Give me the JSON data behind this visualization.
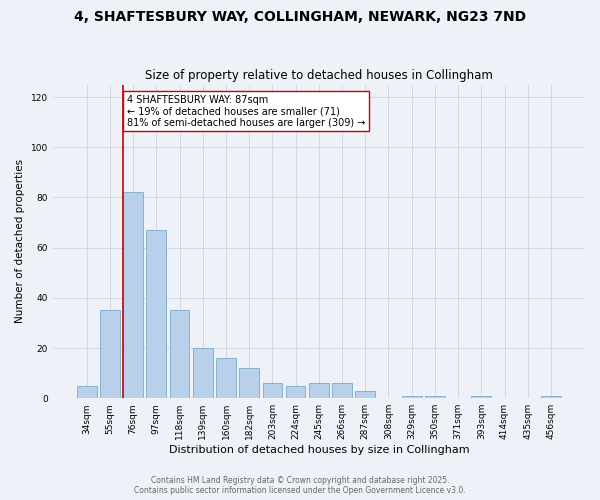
{
  "title1": "4, SHAFTESBURY WAY, COLLINGHAM, NEWARK, NG23 7ND",
  "title2": "Size of property relative to detached houses in Collingham",
  "xlabel": "Distribution of detached houses by size in Collingham",
  "ylabel": "Number of detached properties",
  "categories": [
    "34sqm",
    "55sqm",
    "76sqm",
    "97sqm",
    "118sqm",
    "139sqm",
    "160sqm",
    "182sqm",
    "203sqm",
    "224sqm",
    "245sqm",
    "266sqm",
    "287sqm",
    "308sqm",
    "329sqm",
    "350sqm",
    "371sqm",
    "393sqm",
    "414sqm",
    "435sqm",
    "456sqm"
  ],
  "values": [
    5,
    35,
    82,
    67,
    35,
    20,
    16,
    12,
    6,
    5,
    6,
    6,
    3,
    0,
    1,
    1,
    0,
    1,
    0,
    0,
    1
  ],
  "bar_color": "#b8d0ea",
  "bar_edge_color": "#7aaacb",
  "grid_color": "#d0d8e8",
  "background_color": "#eef2f8",
  "vline_x_index": 2,
  "vline_color": "#cc0000",
  "annotation_text": "4 SHAFTESBURY WAY: 87sqm\n← 19% of detached houses are smaller (71)\n81% of semi-detached houses are larger (309) →",
  "annotation_box_color": "white",
  "annotation_box_edge": "#cc0000",
  "footer": "Contains HM Land Registry data © Crown copyright and database right 2025.\nContains public sector information licensed under the Open Government Licence v3.0.",
  "ylim": [
    0,
    125
  ],
  "yticks": [
    0,
    20,
    40,
    60,
    80,
    100,
    120
  ],
  "bar_width": 0.85
}
